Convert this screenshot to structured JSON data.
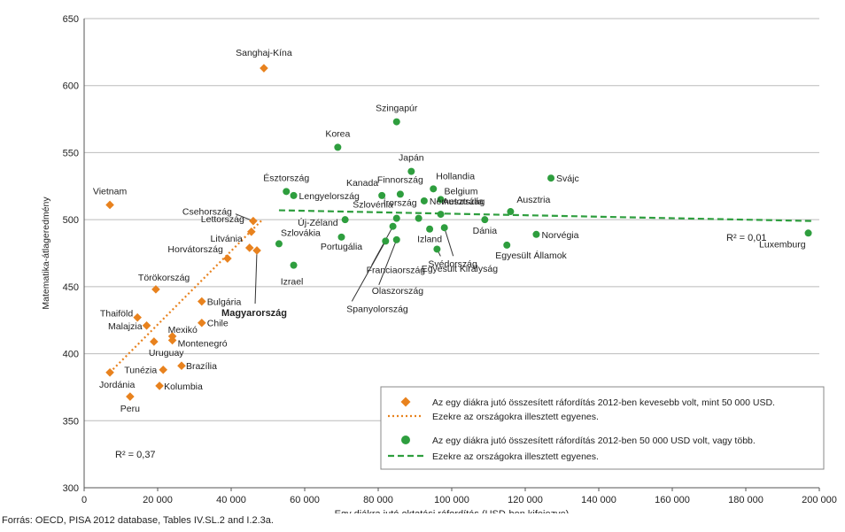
{
  "chart_data": {
    "type": "scatter",
    "title": "",
    "xlabel": "Egy diákra jutó oktatási ráfordítás (USD-ben kifejezve)",
    "ylabel": "Matematika-átlageredmény",
    "xlim": [
      0,
      200000
    ],
    "ylim": [
      300,
      650
    ],
    "x_ticks": [
      0,
      20000,
      40000,
      60000,
      80000,
      100000,
      120000,
      140000,
      160000,
      180000,
      200000
    ],
    "x_tick_labels": [
      "0",
      "20 000",
      "40 000",
      "60 000",
      "80 000",
      "100 000",
      "120 000",
      "140 000",
      "160 000",
      "180 000",
      "200 000"
    ],
    "y_ticks": [
      300,
      350,
      400,
      450,
      500,
      550,
      600,
      650
    ],
    "y_tick_labels": [
      "300",
      "350",
      "400",
      "450",
      "500",
      "550",
      "600",
      "650"
    ],
    "grid": "horizontal",
    "legend_position": "bottom-right",
    "colors": {
      "low": "#e8821e",
      "high": "#2e9e3e",
      "grid": "#bbbbbb",
      "axis": "#555555"
    },
    "series": [
      {
        "name": "Az egy diákra jutó összesített ráfordítás 2012-ben kevesebb volt, mint 50 000 USD.",
        "marker": "diamond",
        "color": "#e8821e",
        "points": [
          {
            "label": "Sanghaj-Kína",
            "x": 48900,
            "y": 613
          },
          {
            "label": "Vietnam",
            "x": 7000,
            "y": 511
          },
          {
            "label": "Csehország",
            "x": 46000,
            "y": 499
          },
          {
            "label": "Lettország",
            "x": 45500,
            "y": 491
          },
          {
            "label": "Litvánia",
            "x": 45000,
            "y": 479
          },
          {
            "label": "Horvátország",
            "x": 39000,
            "y": 471
          },
          {
            "label": "Magyarország",
            "x": 47000,
            "y": 477
          },
          {
            "label": "Törökország",
            "x": 19500,
            "y": 448
          },
          {
            "label": "Bulgária",
            "x": 32000,
            "y": 439
          },
          {
            "label": "Thaiföld",
            "x": 14500,
            "y": 427
          },
          {
            "label": "Malajzia",
            "x": 17000,
            "y": 421
          },
          {
            "label": "Mexikó",
            "x": 24000,
            "y": 413
          },
          {
            "label": "Chile",
            "x": 32000,
            "y": 423
          },
          {
            "label": "Montenegró",
            "x": 24000,
            "y": 410
          },
          {
            "label": "Uruguay",
            "x": 19000,
            "y": 409
          },
          {
            "label": "Tunézia",
            "x": 21500,
            "y": 388
          },
          {
            "label": "Brazília",
            "x": 26500,
            "y": 391
          },
          {
            "label": "Jordánia",
            "x": 7000,
            "y": 386
          },
          {
            "label": "Kolumbia",
            "x": 20500,
            "y": 376
          },
          {
            "label": "Peru",
            "x": 12500,
            "y": 368
          }
        ]
      },
      {
        "name": "Az egy diákra jutó összesített ráfordítás 2012-ben 50 000 USD volt, vagy több.",
        "marker": "circle",
        "color": "#2e9e3e",
        "points": [
          {
            "label": "Szingapúr",
            "x": 85000,
            "y": 573
          },
          {
            "label": "Korea",
            "x": 69000,
            "y": 554
          },
          {
            "label": "Japán",
            "x": 89000,
            "y": 536
          },
          {
            "label": "Svájc",
            "x": 127000,
            "y": 531
          },
          {
            "label": "Észtország",
            "x": 55000,
            "y": 521
          },
          {
            "label": "Lengyelország",
            "x": 57000,
            "y": 518
          },
          {
            "label": "Kanada",
            "x": 81000,
            "y": 518
          },
          {
            "label": "Finnország",
            "x": 86000,
            "y": 519
          },
          {
            "label": "Hollandia",
            "x": 95000,
            "y": 523
          },
          {
            "label": "Belgium",
            "x": 97000,
            "y": 515
          },
          {
            "label": "Írország",
            "x": 91000,
            "y": 501
          },
          {
            "label": "Ausztrália",
            "x": 97000,
            "y": 504
          },
          {
            "label": "Ausztria",
            "x": 116000,
            "y": 506
          },
          {
            "label": "Dánia",
            "x": 109000,
            "y": 500
          },
          {
            "label": "Németország",
            "x": 92500,
            "y": 514
          },
          {
            "label": "Új-Zéland",
            "x": 71000,
            "y": 500
          },
          {
            "label": "Szlovákia",
            "x": 53000,
            "y": 482
          },
          {
            "label": "Portugália",
            "x": 70000,
            "y": 487
          },
          {
            "label": "Szlovénia",
            "x": 85000,
            "y": 501
          },
          {
            "label": "Izland",
            "x": 94000,
            "y": 493
          },
          {
            "label": "Norvégia",
            "x": 123000,
            "y": 489
          },
          {
            "label": "Luxemburg",
            "x": 197000,
            "y": 490
          },
          {
            "label": "Egyesült Államok",
            "x": 115000,
            "y": 481
          },
          {
            "label": "Svédország",
            "x": 96000,
            "y": 478
          },
          {
            "label": "Egyesült Királyság",
            "x": 98000,
            "y": 494
          },
          {
            "label": "Franciaország",
            "x": 84000,
            "y": 495
          },
          {
            "label": "Olaszország",
            "x": 85000,
            "y": 485
          },
          {
            "label": "Spanyolország",
            "x": 82000,
            "y": 484
          },
          {
            "label": "Izrael",
            "x": 57000,
            "y": 466
          }
        ]
      }
    ],
    "trendlines": [
      {
        "name": "Ezekre az országokra illesztett egyenes.",
        "series": 0,
        "style": "dotted",
        "color": "#e8821e",
        "from": {
          "x": 7000,
          "y": 386
        },
        "to": {
          "x": 48500,
          "y": 500
        },
        "r2_label": "R² = 0,37"
      },
      {
        "name": "Ezekre az országokra illesztett egyenes.",
        "series": 1,
        "style": "dashed",
        "color": "#2e9e3e",
        "from": {
          "x": 53000,
          "y": 507
        },
        "to": {
          "x": 198000,
          "y": 499
        },
        "r2_label": "R² = 0,01"
      }
    ],
    "legend": [
      {
        "text": "Az egy diákra jutó összesített ráfordítás 2012-ben kevesebb volt, mint 50 000 USD.",
        "kind": "diamond",
        "color": "#e8821e"
      },
      {
        "text": "Ezekre az országokra illesztett egyenes.",
        "kind": "dotted-line",
        "color": "#e8821e"
      },
      {
        "text": "Az egy diákra jutó összesített ráfordítás 2012-ben 50 000 USD volt, vagy több.",
        "kind": "circle",
        "color": "#2e9e3e"
      },
      {
        "text": "Ezekre az országokra illesztett egyenes.",
        "kind": "dashed-line",
        "color": "#2e9e3e"
      }
    ],
    "bold_labels": [
      "Magyarország"
    ]
  },
  "source": "Forrás: OECD, PISA 2012 database, Tables IV.SL.2 and I.2.3a."
}
